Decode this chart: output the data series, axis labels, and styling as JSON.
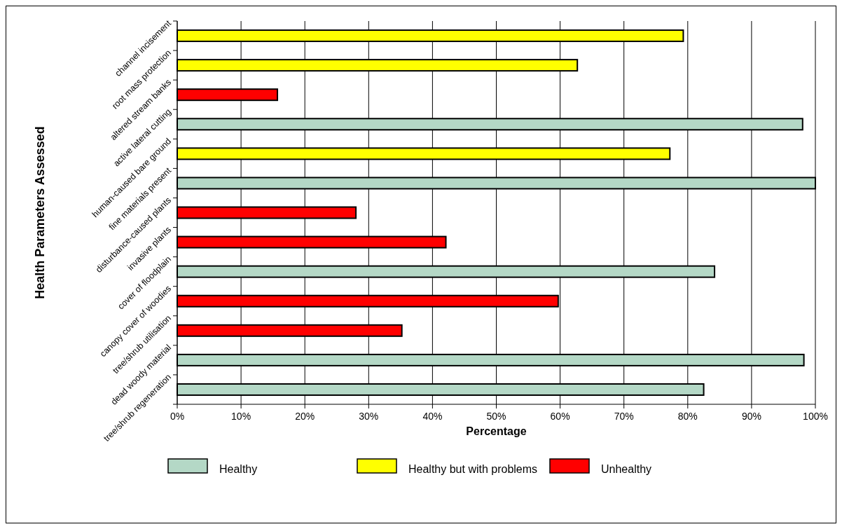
{
  "chart_data": {
    "type": "bar",
    "orientation": "horizontal",
    "xlabel": "Percentage",
    "ylabel": "Health Parameters Assessed",
    "categories": [
      "channel incisement",
      "root mass protection",
      "altered stream banks",
      "active lateral cutting",
      "human-caused bare ground",
      "fine materials present",
      "disturbance-caused plants",
      "invasive plants",
      "cover of floodplain",
      "canopy cover of woodies",
      "tree/shrub utilisation",
      "dead woody material",
      "tree/shrub regeneration"
    ],
    "series": [
      {
        "name": "Healthy",
        "color": "#b4d8c6",
        "values": [
          null,
          null,
          null,
          98,
          null,
          100,
          null,
          null,
          84.2,
          null,
          null,
          98.2,
          82.5
        ]
      },
      {
        "name": "Healthy but with problems",
        "color": "#ffff00",
        "values": [
          79.3,
          62.7,
          null,
          null,
          77.2,
          null,
          null,
          null,
          null,
          null,
          null,
          null,
          null
        ]
      },
      {
        "name": "Unhealthy",
        "color": "#ff0000",
        "values": [
          null,
          null,
          15.7,
          null,
          null,
          null,
          28,
          42.1,
          null,
          59.7,
          35.2,
          null,
          null
        ]
      }
    ],
    "xlim": [
      0,
      100
    ],
    "xticks": [
      {
        "value": 0,
        "label": "0%"
      },
      {
        "value": 10,
        "label": "10%"
      },
      {
        "value": 20,
        "label": "20%"
      },
      {
        "value": 30,
        "label": "30%"
      },
      {
        "value": 40,
        "label": "40%"
      },
      {
        "value": 50,
        "label": "50%"
      },
      {
        "value": 60,
        "label": "60%"
      },
      {
        "value": 70,
        "label": "70%"
      },
      {
        "value": 80,
        "label": "80%"
      },
      {
        "value": 90,
        "label": "90%"
      },
      {
        "value": 100,
        "label": "100%"
      }
    ],
    "grid": "x",
    "legend": "bottom"
  }
}
